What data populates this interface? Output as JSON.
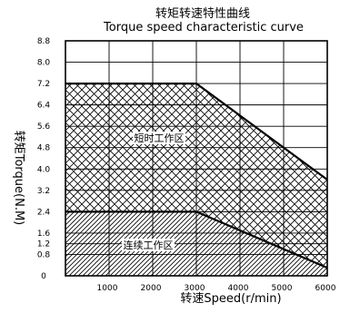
{
  "chart_data": {
    "type": "area",
    "title": "转矩转速特性曲线",
    "subtitle": "Torque speed characteristic curve",
    "xlabel": "转速Speed(r/min)",
    "ylabel": "转矩Torque(N.M)",
    "xlim": [
      0,
      6000
    ],
    "ylim": [
      0,
      8.8
    ],
    "x_ticks": [
      1000,
      2000,
      3000,
      4000,
      5000,
      6000
    ],
    "x_tick_labels": [
      "1000",
      "2000",
      "3000",
      "4000",
      "5000",
      "6000"
    ],
    "y_ticks": [
      0,
      0.8,
      1.2,
      1.6,
      2.4,
      3.2,
      4.0,
      4.8,
      5.6,
      6.4,
      7.2,
      8.0,
      8.8
    ],
    "y_tick_labels": [
      "0",
      "0.8",
      "1.2",
      "1.6",
      "2.4",
      "3.2",
      "4.0",
      "4.8",
      "5.6",
      "6.4",
      "7.2",
      "8.0",
      "8.8"
    ],
    "grid": true,
    "series": [
      {
        "name": "短时工作区",
        "pattern": "crosshatch",
        "x": [
          0,
          3000,
          6000
        ],
        "y": [
          7.2,
          7.2,
          3.6
        ]
      },
      {
        "name": "连续工作区",
        "pattern": "diagonal",
        "x": [
          0,
          3000,
          6000
        ],
        "y": [
          2.4,
          2.4,
          0.3
        ]
      }
    ],
    "colors": {
      "line": "#000000",
      "hatch": "#000000",
      "background": "#ffffff"
    }
  }
}
